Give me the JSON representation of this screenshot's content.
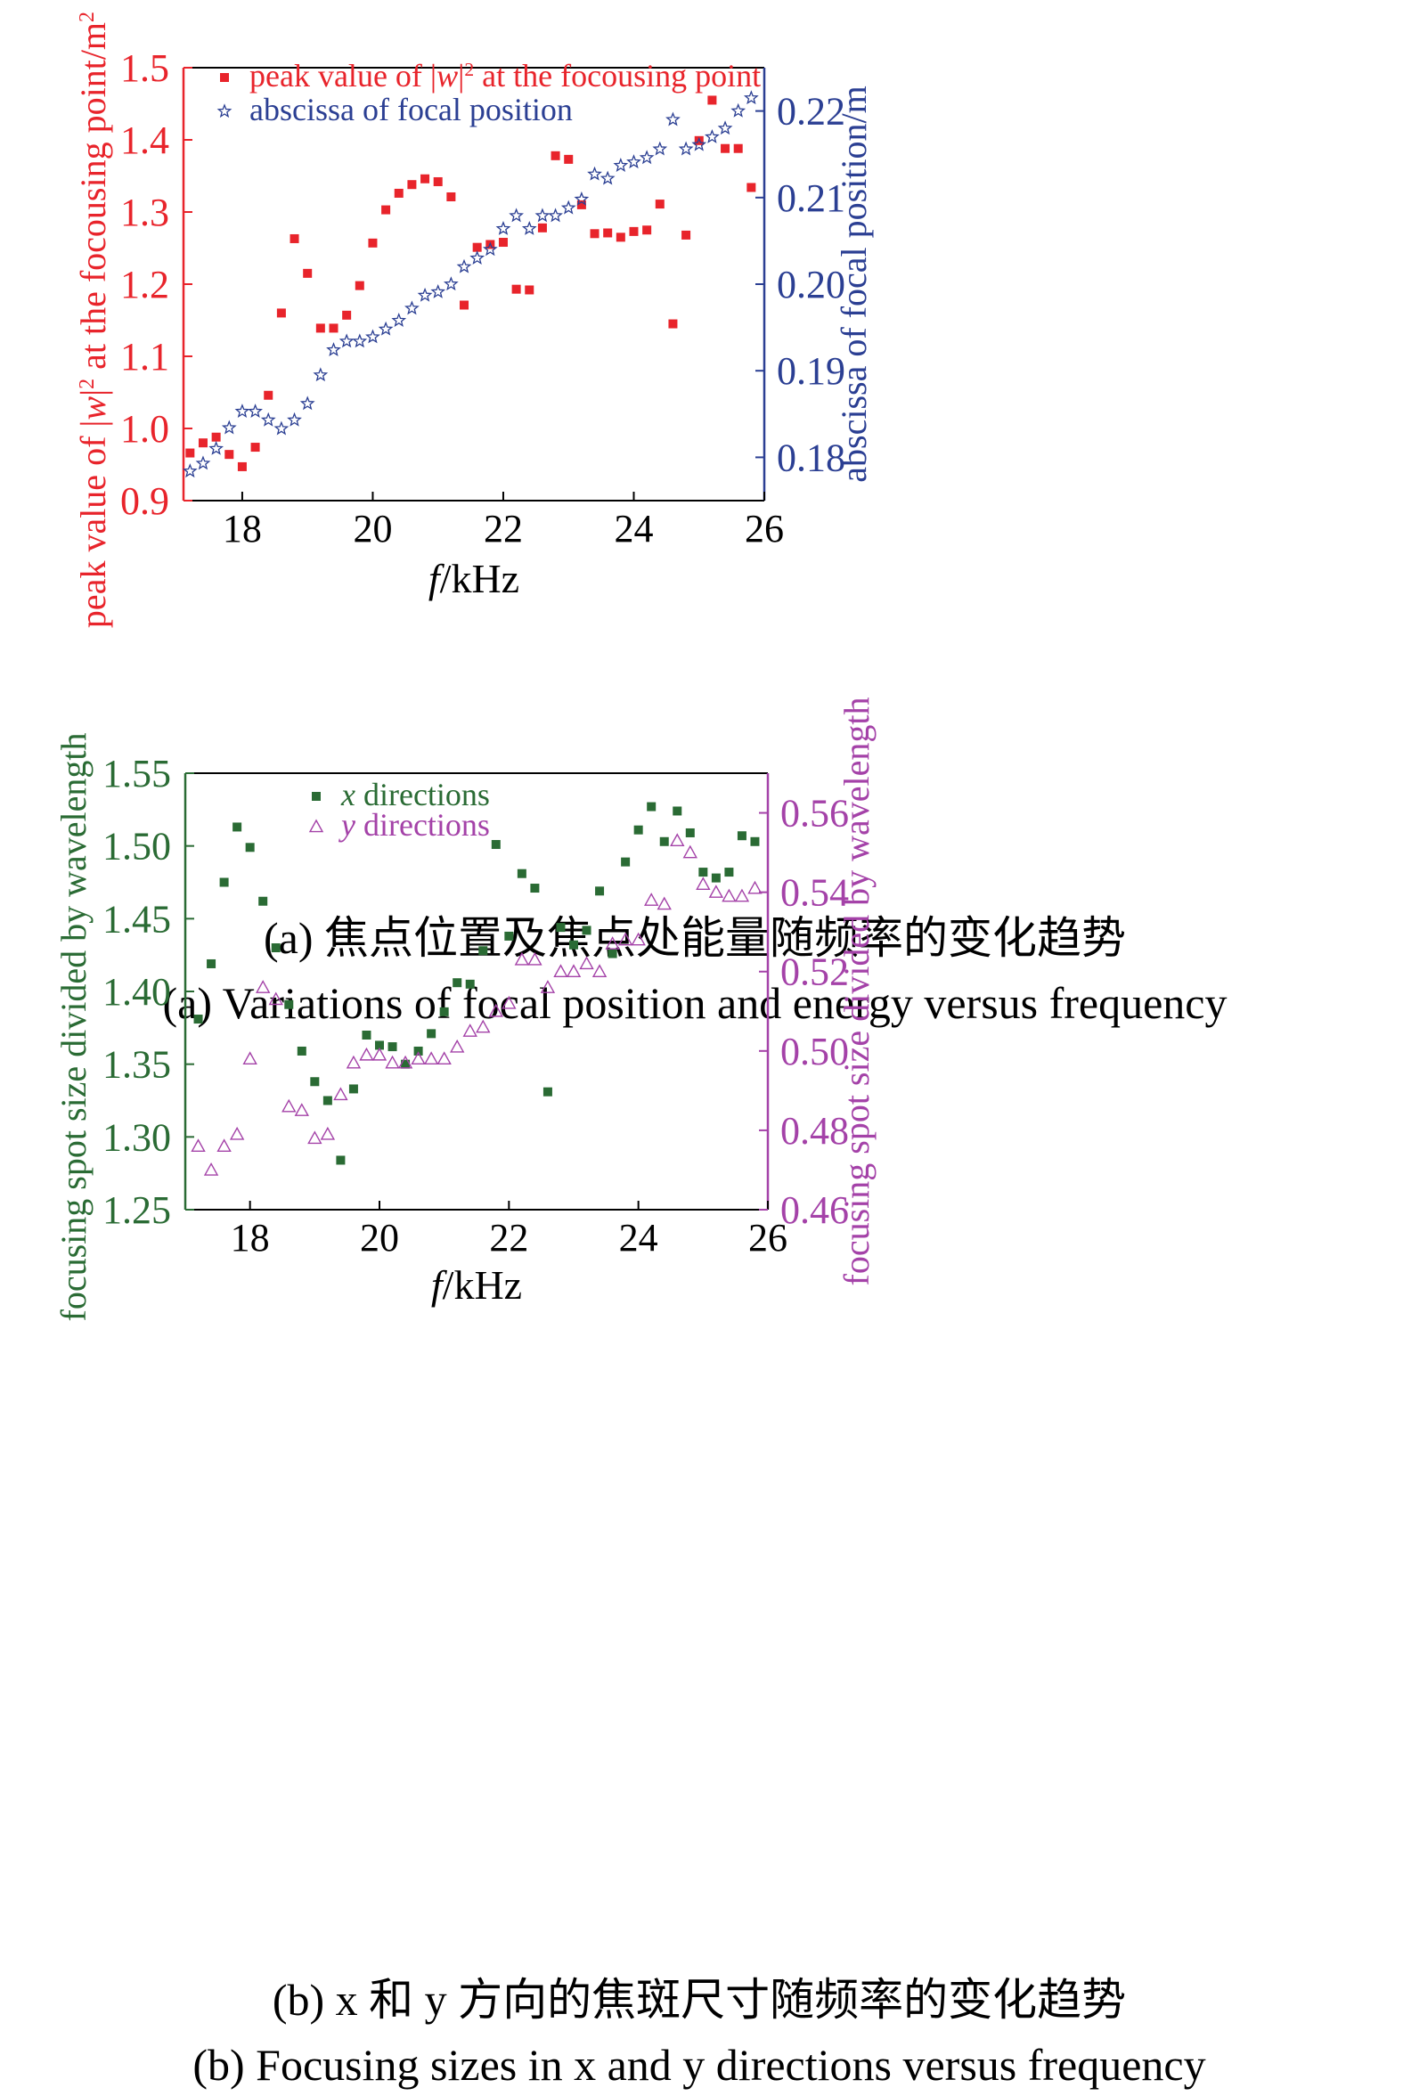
{
  "colors": {
    "red": "#e8242b",
    "blue": "#2b3f93",
    "green": "#2a6b34",
    "purple": "#a442a8",
    "axis": "#000000"
  },
  "panel_a": {
    "caption_cn": "(a) 焦点位置及焦点处能量随频率的变化趋势",
    "caption_en": "(a) Variations of focal position and energy versus frequency"
  },
  "panel_b": {
    "caption_cn": "(b) x 和 y 方向的焦斑尺寸随频率的变化趋势",
    "caption_en": "(b) Focusing sizes in x and y directions versus frequency"
  },
  "chart_data": [
    {
      "type": "scatter",
      "xlabel": "f/kHz",
      "xlim": [
        17.1,
        26.0
      ],
      "xticks": [
        "18",
        "20",
        "22",
        "24",
        "26"
      ],
      "ylabel_left": "peak value of |w|² at the focousing point/m²",
      "ylim_left": [
        0.9,
        1.5
      ],
      "yticks_left": [
        "0.9",
        "1.0",
        "1.1",
        "1.2",
        "1.3",
        "1.4",
        "1.5"
      ],
      "ylabel_right": "abscissa of focal position/m",
      "ylim_right": [
        0.175,
        0.225
      ],
      "yticks_right": [
        "0.18",
        "0.19",
        "0.20",
        "0.21",
        "0.22"
      ],
      "legend_position": "top-left",
      "series": [
        {
          "name": "peak value of |w|² at the focousing point",
          "axis": "left",
          "marker": "square",
          "color": "#e8242b",
          "x": [
            17.2,
            17.4,
            17.6,
            17.8,
            18.0,
            18.2,
            18.4,
            18.6,
            18.8,
            19.0,
            19.2,
            19.4,
            19.6,
            19.8,
            20.0,
            20.2,
            20.4,
            20.6,
            20.8,
            21.0,
            21.2,
            21.4,
            21.6,
            21.8,
            22.0,
            22.2,
            22.4,
            22.6,
            22.8,
            23.0,
            23.2,
            23.4,
            23.6,
            23.8,
            24.0,
            24.2,
            24.4,
            24.6,
            24.8,
            25.0,
            25.2,
            25.4,
            25.6,
            25.8
          ],
          "y": [
            0.966,
            0.98,
            0.988,
            0.964,
            0.947,
            0.974,
            1.046,
            1.16,
            1.263,
            1.215,
            1.139,
            1.139,
            1.157,
            1.198,
            1.257,
            1.303,
            1.326,
            1.338,
            1.346,
            1.342,
            1.321,
            1.171,
            1.251,
            1.255,
            1.258,
            1.193,
            1.192,
            1.278,
            1.378,
            1.373,
            1.31,
            1.27,
            1.271,
            1.265,
            1.273,
            1.275,
            1.311,
            1.145,
            1.268,
            1.399,
            1.455,
            1.388,
            1.388,
            1.334
          ]
        },
        {
          "name": "abscissa of focal position",
          "axis": "right",
          "marker": "star",
          "color": "#2b3f93",
          "x": [
            17.2,
            17.4,
            17.6,
            17.8,
            18.0,
            18.2,
            18.4,
            18.6,
            18.8,
            19.0,
            19.2,
            19.4,
            19.6,
            19.8,
            20.0,
            20.2,
            20.4,
            20.6,
            20.8,
            21.0,
            21.2,
            21.4,
            21.6,
            21.8,
            22.0,
            22.2,
            22.4,
            22.6,
            22.8,
            23.0,
            23.2,
            23.4,
            23.6,
            23.8,
            24.0,
            24.2,
            24.4,
            24.6,
            24.8,
            25.0,
            25.2,
            25.4,
            25.6,
            25.8
          ],
          "y": [
            0.1784,
            0.1793,
            0.181,
            0.1834,
            0.1853,
            0.1853,
            0.1843,
            0.1833,
            0.1843,
            0.1862,
            0.1895,
            0.1924,
            0.1934,
            0.1934,
            0.1939,
            0.1948,
            0.1958,
            0.1972,
            0.1987,
            0.1991,
            0.2,
            0.202,
            0.203,
            0.204,
            0.2064,
            0.2079,
            0.2064,
            0.2079,
            0.2079,
            0.2088,
            0.2098,
            0.2127,
            0.2122,
            0.2137,
            0.2141,
            0.2146,
            0.2156,
            0.219,
            0.2156,
            0.2161,
            0.217,
            0.218,
            0.22,
            0.2215
          ]
        }
      ]
    },
    {
      "type": "scatter",
      "xlabel": "f/kHz",
      "xlim": [
        17.0,
        26.0
      ],
      "xticks": [
        "18",
        "20",
        "22",
        "24",
        "26"
      ],
      "ylabel_left": "focusing spot size divided by wavelength",
      "ylim_left": [
        1.25,
        1.55
      ],
      "yticks_left": [
        "1.25",
        "1.30",
        "1.35",
        "1.40",
        "1.45",
        "1.50",
        "1.55"
      ],
      "ylabel_right": "focusing spot size divided by wavelength",
      "ylim_right": [
        0.46,
        0.57
      ],
      "yticks_right": [
        "0.46",
        "0.48",
        "0.50",
        "0.52",
        "0.54",
        "0.56"
      ],
      "legend_position": "top-center",
      "series": [
        {
          "name": "x directions",
          "axis": "left",
          "marker": "square",
          "color": "#2a6b34",
          "x": [
            17.2,
            17.4,
            17.6,
            17.8,
            18.0,
            18.2,
            18.4,
            18.6,
            18.8,
            19.0,
            19.2,
            19.4,
            19.6,
            19.8,
            20.0,
            20.2,
            20.4,
            20.6,
            20.8,
            21.0,
            21.2,
            21.4,
            21.6,
            21.8,
            22.0,
            22.2,
            22.4,
            22.6,
            22.8,
            23.0,
            23.2,
            23.4,
            23.6,
            23.8,
            24.0,
            24.2,
            24.4,
            24.6,
            24.8,
            25.0,
            25.2,
            25.4,
            25.6,
            25.8
          ],
          "y": [
            1.381,
            1.419,
            1.475,
            1.513,
            1.499,
            1.462,
            1.43,
            1.391,
            1.359,
            1.338,
            1.325,
            1.284,
            1.333,
            1.37,
            1.363,
            1.362,
            1.35,
            1.359,
            1.371,
            1.386,
            1.406,
            1.405,
            1.428,
            1.501,
            1.438,
            1.481,
            1.471,
            1.331,
            1.444,
            1.432,
            1.442,
            1.469,
            1.426,
            1.489,
            1.511,
            1.527,
            1.503,
            1.524,
            1.509,
            1.482,
            1.478,
            1.482,
            1.507,
            1.503
          ]
        },
        {
          "name": "y directions",
          "axis": "right",
          "marker": "triangle",
          "color": "#a442a8",
          "x": [
            17.2,
            17.4,
            17.6,
            17.8,
            18.0,
            18.2,
            18.4,
            18.6,
            18.8,
            19.0,
            19.2,
            19.4,
            19.6,
            19.8,
            20.0,
            20.2,
            20.4,
            20.6,
            20.8,
            21.0,
            21.2,
            21.4,
            21.6,
            21.8,
            22.0,
            22.2,
            22.4,
            22.6,
            22.8,
            23.0,
            23.2,
            23.4,
            23.6,
            23.8,
            24.0,
            24.2,
            24.4,
            24.6,
            24.8,
            25.0,
            25.2,
            25.4,
            25.6,
            25.8
          ],
          "y": [
            0.476,
            0.47,
            0.476,
            0.479,
            0.498,
            0.516,
            0.513,
            0.486,
            0.485,
            0.478,
            0.479,
            0.489,
            0.497,
            0.499,
            0.499,
            0.497,
            0.497,
            0.498,
            0.498,
            0.498,
            0.501,
            0.505,
            0.506,
            0.51,
            0.512,
            0.523,
            0.523,
            0.516,
            0.52,
            0.52,
            0.522,
            0.52,
            0.527,
            0.528,
            0.528,
            0.538,
            0.537,
            0.553,
            0.55,
            0.542,
            0.54,
            0.539,
            0.539,
            0.541
          ]
        }
      ]
    }
  ]
}
